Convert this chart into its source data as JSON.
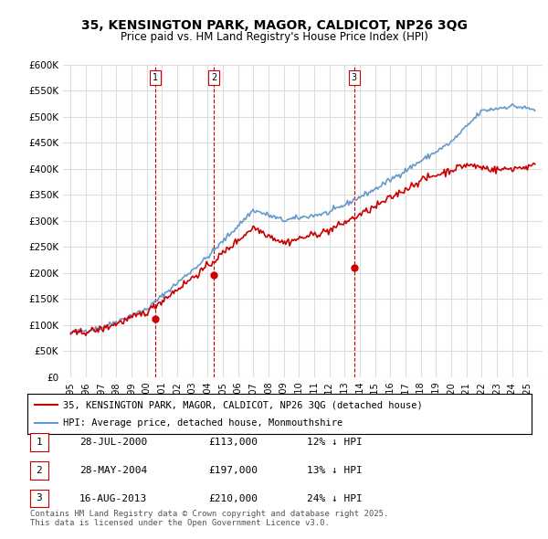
{
  "title": "35, KENSINGTON PARK, MAGOR, CALDICOT, NP26 3QG",
  "subtitle": "Price paid vs. HM Land Registry's House Price Index (HPI)",
  "red_label": "35, KENSINGTON PARK, MAGOR, CALDICOT, NP26 3QG (detached house)",
  "blue_label": "HPI: Average price, detached house, Monmouthshire",
  "footnote": "Contains HM Land Registry data © Crown copyright and database right 2025.\nThis data is licensed under the Open Government Licence v3.0.",
  "transactions": [
    {
      "num": 1,
      "date": "28-JUL-2000",
      "price": "£113,000",
      "pct": "12% ↓ HPI",
      "year": 2000.57
    },
    {
      "num": 2,
      "date": "28-MAY-2004",
      "price": "£197,000",
      "pct": "13% ↓ HPI",
      "year": 2004.41
    },
    {
      "num": 3,
      "date": "16-AUG-2013",
      "price": "£210,000",
      "pct": "24% ↓ HPI",
      "year": 2013.62
    }
  ],
  "red_color": "#cc0000",
  "blue_color": "#6699cc",
  "dashed_red": "#cc0000",
  "bg_color": "#ffffff",
  "grid_color": "#dddddd",
  "ylim": [
    0,
    600000
  ],
  "yticks": [
    0,
    50000,
    100000,
    150000,
    200000,
    250000,
    300000,
    350000,
    400000,
    450000,
    500000,
    550000,
    600000
  ],
  "ytick_labels": [
    "£0",
    "£50K",
    "£100K",
    "£150K",
    "£200K",
    "£250K",
    "£300K",
    "£350K",
    "£400K",
    "£450K",
    "£500K",
    "£550K",
    "£600K"
  ],
  "xlim": [
    1994.5,
    2026
  ],
  "xticks": [
    1995,
    1996,
    1997,
    1998,
    1999,
    2000,
    2001,
    2002,
    2003,
    2004,
    2005,
    2006,
    2007,
    2008,
    2009,
    2010,
    2011,
    2012,
    2013,
    2014,
    2015,
    2016,
    2017,
    2018,
    2019,
    2020,
    2021,
    2022,
    2023,
    2024,
    2025
  ]
}
